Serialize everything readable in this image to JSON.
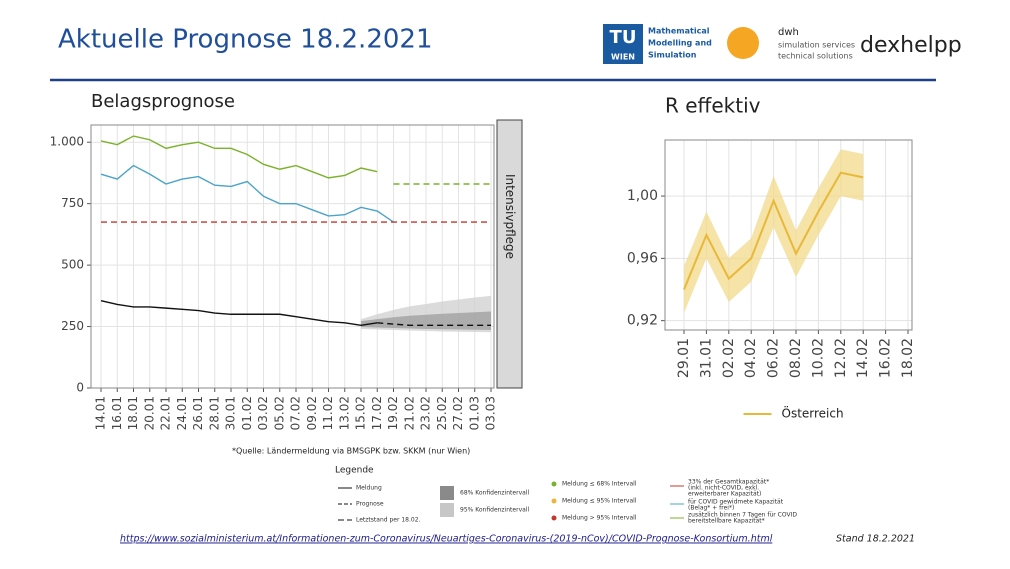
{
  "header": {
    "title": "Aktuelle Prognose 18.2.2021",
    "logos": {
      "tu": "TU",
      "wien": "WIEN",
      "tu_text": [
        "Mathematical",
        "Modelling and",
        "Simulation"
      ],
      "dwh": "dwh",
      "dwh_text": [
        "simulation services",
        "technical solutions"
      ],
      "dexhelpp": "dexhelpp"
    }
  },
  "chart_data": [
    {
      "type": "line",
      "title": "Belagsprognose",
      "strip": "Intensivpflege",
      "categories": [
        "14.01",
        "16.01",
        "18.01",
        "20.01",
        "22.01",
        "24.01",
        "26.01",
        "28.01",
        "30.01",
        "01.02",
        "03.02",
        "05.02",
        "07.02",
        "09.02",
        "11.02",
        "13.02",
        "15.02",
        "17.02",
        "19.02",
        "21.02",
        "23.02",
        "25.02",
        "27.02",
        "01.03",
        "03.03"
      ],
      "ylim": [
        0,
        1070
      ],
      "yticks": [
        0,
        250,
        500,
        750,
        {
          "value": 1000,
          "label": "1.000"
        }
      ],
      "grid": true,
      "bands": [
        {
          "color": "#cfcfcf",
          "lower": [
            null,
            null,
            null,
            null,
            null,
            null,
            null,
            null,
            null,
            null,
            null,
            null,
            null,
            null,
            null,
            null,
            240,
            238,
            236,
            234,
            232,
            230,
            229,
            228,
            227
          ],
          "upper": [
            null,
            null,
            null,
            null,
            null,
            null,
            null,
            null,
            null,
            null,
            null,
            null,
            null,
            null,
            null,
            null,
            280,
            300,
            318,
            332,
            342,
            352,
            360,
            368,
            375
          ]
        },
        {
          "color": "#9e9e9e",
          "lower": [
            null,
            null,
            null,
            null,
            null,
            null,
            null,
            null,
            null,
            null,
            null,
            null,
            null,
            null,
            null,
            null,
            248,
            246,
            244,
            242,
            240,
            239,
            238,
            237,
            236
          ],
          "upper": [
            null,
            null,
            null,
            null,
            null,
            null,
            null,
            null,
            null,
            null,
            null,
            null,
            null,
            null,
            null,
            null,
            272,
            280,
            288,
            294,
            298,
            302,
            305,
            308,
            311
          ]
        }
      ],
      "series": [
        {
          "color": "#7ab229",
          "dash": false,
          "values": [
            1005,
            990,
            1025,
            1010,
            975,
            990,
            1000,
            975,
            975,
            950,
            910,
            890,
            905,
            880,
            855,
            865,
            895,
            880,
            null,
            null,
            null,
            null,
            null,
            null,
            null
          ]
        },
        {
          "color": "#7ab229",
          "dash": true,
          "values": [
            null,
            null,
            null,
            null,
            null,
            null,
            null,
            null,
            null,
            null,
            null,
            null,
            null,
            null,
            null,
            null,
            null,
            null,
            830,
            830,
            830,
            830,
            830,
            830,
            830
          ]
        },
        {
          "color": "#4aa3c8",
          "dash": false,
          "values": [
            870,
            850,
            905,
            870,
            830,
            850,
            860,
            825,
            820,
            840,
            780,
            750,
            750,
            725,
            700,
            705,
            735,
            720,
            675,
            null,
            null,
            null,
            null,
            null,
            null
          ]
        },
        {
          "color": "#c0392b",
          "dash": true,
          "values": [
            675,
            675,
            675,
            675,
            675,
            675,
            675,
            675,
            675,
            675,
            675,
            675,
            675,
            675,
            675,
            675,
            675,
            675,
            675,
            675,
            675,
            675,
            675,
            675,
            675
          ]
        },
        {
          "color": "#111111",
          "dash": false,
          "values": [
            355,
            340,
            330,
            330,
            325,
            320,
            315,
            305,
            300,
            300,
            300,
            300,
            290,
            280,
            270,
            265,
            255,
            265,
            null,
            null,
            null,
            null,
            null,
            null,
            null
          ]
        },
        {
          "color": "#111111",
          "dash": true,
          "values": [
            null,
            null,
            null,
            null,
            null,
            null,
            null,
            null,
            null,
            null,
            null,
            null,
            null,
            null,
            null,
            null,
            null,
            265,
            260,
            255,
            255,
            255,
            255,
            255,
            255
          ]
        }
      ],
      "source": "*Quelle: Ländermeldung via BMSGPK bzw. SKKM (nur Wien)"
    },
    {
      "type": "line",
      "title": "R effektiv",
      "categories": [
        "29.01",
        "31.01",
        "02.02",
        "04.02",
        "06.02",
        "08.02",
        "10.02",
        "12.02",
        "14.02",
        "16.02",
        "18.02"
      ],
      "ylim": [
        0.914,
        1.036
      ],
      "yticks": [
        {
          "value": 0.92,
          "label": "0,92"
        },
        {
          "value": 0.96,
          "label": "0,96"
        },
        {
          "value": 1.0,
          "label": "1,00"
        }
      ],
      "grid": true,
      "bands": [
        {
          "color": "#f1d98a",
          "lower": [
            0.925,
            0.96,
            0.932,
            0.945,
            0.98,
            0.948,
            0.975,
            1.0,
            0.997,
            null,
            null
          ],
          "upper": [
            0.955,
            0.99,
            0.96,
            0.973,
            1.013,
            0.978,
            1.005,
            1.03,
            1.027,
            null,
            null
          ]
        }
      ],
      "series": [
        {
          "name": "Österreich",
          "color": "#e8b83a",
          "dash": false,
          "values": [
            0.94,
            0.975,
            0.947,
            0.96,
            0.997,
            0.963,
            0.99,
            1.015,
            1.012,
            null,
            null
          ]
        }
      ]
    }
  ],
  "legend": {
    "title": "Legende",
    "lines": [
      "Meldung",
      "Prognose",
      "Letztstand per 18.02."
    ],
    "intervals": [
      "68% Konfidenzintervall",
      "95% Konfidenzintervall"
    ],
    "points": [
      "Meldung ≤ 68% Intervall",
      "Meldung ≤ 95% Intervall",
      "Meldung > 95% Intervall"
    ],
    "capacities": [
      [
        "33% der Gesamtkapazität*",
        "(inkl. nicht-COVID, exkl.",
        "erweiterbarer Kapazität)"
      ],
      [
        "für COVID gewidmete Kapazität",
        "(Belag* + frei*)"
      ],
      [
        "zusätzlich binnen 7 Tagen für COVID",
        "bereitstellbare Kapazität*"
      ]
    ]
  },
  "footer": {
    "link": "https://www.sozialministerium.at/Informationen-zum-Coronavirus/Neuartiges-Coronavirus-(2019-nCov)/COVID-Prognose-Konsortium.html",
    "date": "Stand 18.2.2021"
  }
}
